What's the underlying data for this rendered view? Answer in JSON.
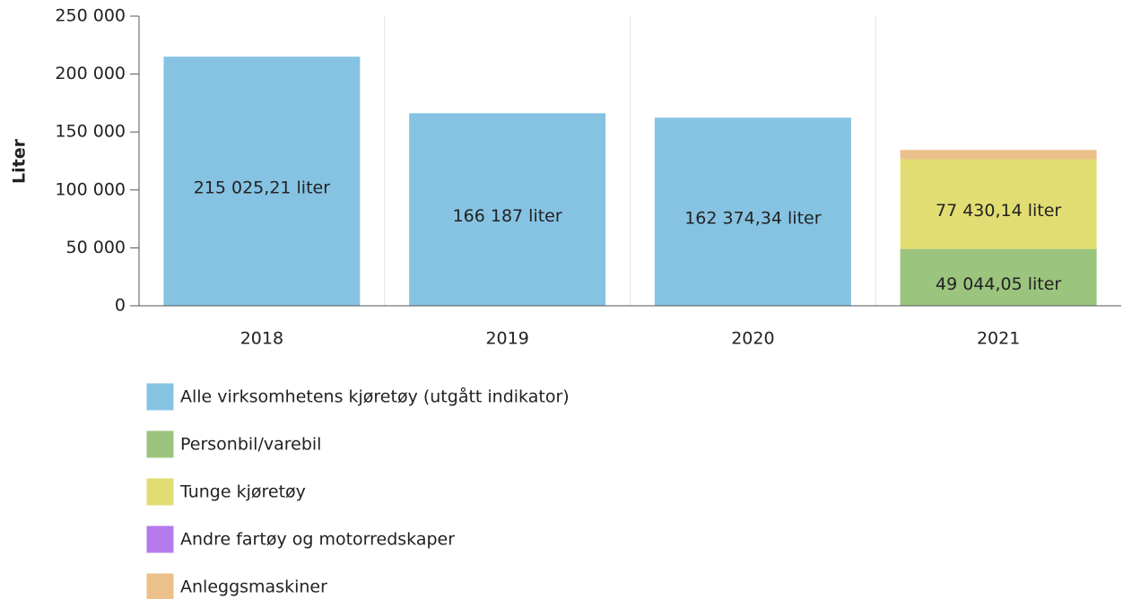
{
  "chart_data": {
    "type": "stacked_bar",
    "y_label": "Liter",
    "categories": [
      "2018",
      "2019",
      "2020",
      "2021"
    ],
    "series": [
      {
        "name": "Alle virksomhetens kjøretøy (utgått indikator)",
        "color": "#86c3e3",
        "values": [
          215025.21,
          166187,
          162374.34,
          null
        ],
        "value_labels": [
          "215 025,21 liter",
          "166 187 liter",
          "162 374,34 liter",
          null
        ]
      },
      {
        "name": "Personbil/varebil",
        "color": "#9bc47e",
        "values": [
          null,
          null,
          null,
          49044.05
        ],
        "value_labels": [
          null,
          null,
          null,
          "49 044,05 liter"
        ]
      },
      {
        "name": "Tunge kjøretøy",
        "color": "#e2dd72",
        "values": [
          null,
          null,
          null,
          77430.14
        ],
        "value_labels": [
          null,
          null,
          null,
          "77 430,14 liter"
        ]
      },
      {
        "name": "Andre fartøy og motorredskaper",
        "color": "#b57bed",
        "values": [
          null,
          null,
          null,
          null
        ]
      },
      {
        "name": "Anleggsmaskiner",
        "color": "#ebc08a",
        "values": [
          null,
          null,
          null,
          8000
        ]
      }
    ],
    "ylim": [
      0,
      250000
    ],
    "yticks": [
      0,
      {
        "value": 50000,
        "label": "50 000"
      },
      {
        "value": 100000,
        "label": "100 000"
      },
      {
        "value": 150000,
        "label": "150 000"
      },
      {
        "value": 200000,
        "label": "200 000"
      },
      {
        "value": 250000,
        "label": "250 000"
      }
    ]
  }
}
